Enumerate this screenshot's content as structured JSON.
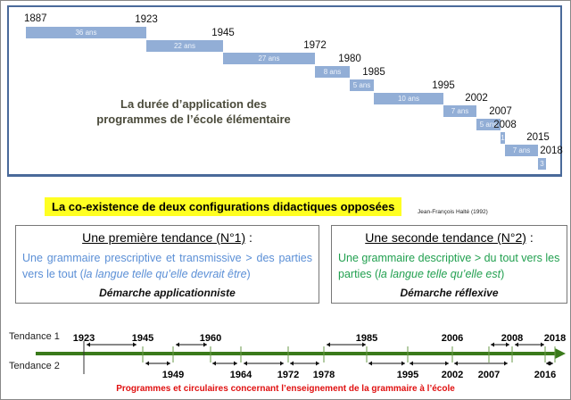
{
  "top_panel": {
    "title_line1": "La durée d’application des",
    "title_line2": "programmes de l’école élémentaire",
    "start_year": "1887",
    "periods": [
      {
        "end": "1923",
        "label": "36 ans",
        "years": 36
      },
      {
        "end": "1945",
        "label": "22 ans",
        "years": 22
      },
      {
        "end": "1972",
        "label": "27 ans",
        "years": 27
      },
      {
        "end": "1980",
        "label": "8 ans",
        "years": 8
      },
      {
        "end": "1985",
        "label": "5 ans",
        "years": 5
      },
      {
        "end": "1995",
        "label": "10 ans",
        "years": 10
      },
      {
        "end": "2002",
        "label": "7 ans",
        "years": 7
      },
      {
        "end": "2007",
        "label": "5 ans",
        "years": 5
      },
      {
        "end": "2008",
        "label": "1",
        "years": 1
      },
      {
        "end": "2015",
        "label": "7 ans",
        "years": 7
      },
      {
        "end": "2018",
        "label": "3",
        "years": 3
      }
    ]
  },
  "highlight": "La co-existence de deux configurations didactiques opposées",
  "citation": "Jean-François Halté (1992)",
  "tendance1": {
    "title": "Une première tendance (N°1)",
    "colon": " :",
    "text": "Une grammaire prescriptive et transmissive > des parties vers le tout (",
    "italic": "la langue telle qu’elle devrait être",
    "close": ")",
    "demarche": "Démarche applicationniste"
  },
  "tendance2": {
    "title": "Une seconde tendance (N°2)",
    "colon": " :",
    "text": "Une grammaire descriptive > du tout vers les parties (",
    "italic": "la langue telle qu’elle est",
    "close": ")",
    "demarche": "Démarche réflexive"
  },
  "timeline": {
    "label1": "Tendance 1",
    "label2": "Tendance 2",
    "top_years": [
      "1923",
      "1945",
      "1960",
      "1985",
      "2006",
      "2008",
      "2018"
    ],
    "bottom_years": [
      "1949",
      "1964",
      "1972",
      "1978",
      "1995",
      "2002",
      "2007",
      "2016"
    ],
    "caption": "Programmes et circulaires concernant l’enseignement de la grammaire à l’école"
  },
  "colors": {
    "bar": "#92aed6",
    "blue_text": "#5b8fd6",
    "green_text": "#22a050",
    "timeline": "#3a7a1a",
    "caption": "#e01010",
    "highlight": "#ffff22"
  }
}
